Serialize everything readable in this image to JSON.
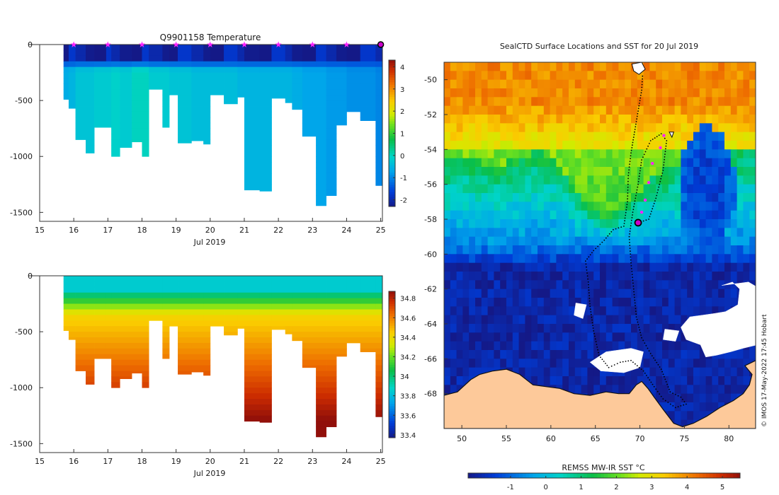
{
  "credit": "© IMOS 17-May-2022 17:45 Hobart",
  "chart_data": [
    {
      "type": "heatmap",
      "name": "temperature-section",
      "title": "Q9901158  Temperature",
      "xlabel": "Jul 2019",
      "ylabel": "",
      "xlim": [
        15,
        25.05
      ],
      "ylim": [
        -1580,
        0
      ],
      "xticks": [
        "15",
        "16",
        "17",
        "18",
        "19",
        "20",
        "21",
        "22",
        "23",
        "24",
        "25"
      ],
      "yticks": [
        "0",
        "-500",
        "-1000",
        "-1500"
      ],
      "colorbar": {
        "min": -2.3,
        "max": 4.3,
        "ticks": [
          "-2",
          "-1",
          "0",
          "1",
          "2",
          "3",
          "4"
        ]
      },
      "profile_markers": [
        16,
        17,
        18,
        19,
        20,
        21,
        22,
        23,
        24
      ],
      "last_position": 25,
      "profiles": [
        {
          "t": 15.7,
          "d": 490,
          "s": 1.7
        },
        {
          "t": 15.85,
          "d": 570,
          "s": 1.8
        },
        {
          "t": 16.05,
          "d": 850,
          "s": 2.0
        },
        {
          "t": 16.35,
          "d": 970,
          "s": 2.0
        },
        {
          "t": 16.6,
          "d": 740,
          "s": 2.1
        },
        {
          "t": 16.95,
          "d": 740,
          "s": 2.1
        },
        {
          "t": 17.1,
          "d": 1000,
          "s": 2.2
        },
        {
          "t": 17.35,
          "d": 920,
          "s": 2.1
        },
        {
          "t": 17.7,
          "d": 870,
          "s": 2.3
        },
        {
          "t": 18.0,
          "d": 1000,
          "s": 2.3
        },
        {
          "t": 18.2,
          "d": 400,
          "s": 2.1
        },
        {
          "t": 18.6,
          "d": 740,
          "s": 2.1
        },
        {
          "t": 18.8,
          "d": 450,
          "s": 2.0
        },
        {
          "t": 19.05,
          "d": 880,
          "s": 2.0
        },
        {
          "t": 19.45,
          "d": 860,
          "s": 1.9
        },
        {
          "t": 19.8,
          "d": 890,
          "s": 1.9
        },
        {
          "t": 20.0,
          "d": 450,
          "s": 1.9
        },
        {
          "t": 20.4,
          "d": 530,
          "s": 1.9
        },
        {
          "t": 20.8,
          "d": 470,
          "s": 1.8
        },
        {
          "t": 21.0,
          "d": 1300,
          "s": 1.8
        },
        {
          "t": 21.45,
          "d": 1310,
          "s": 1.8
        },
        {
          "t": 21.8,
          "d": 480,
          "s": 1.8
        },
        {
          "t": 22.2,
          "d": 520,
          "s": 1.8
        },
        {
          "t": 22.4,
          "d": 580,
          "s": 1.7
        },
        {
          "t": 22.7,
          "d": 820,
          "s": 1.6
        },
        {
          "t": 23.1,
          "d": 1440,
          "s": 1.6
        },
        {
          "t": 23.4,
          "d": 1350,
          "s": 1.5
        },
        {
          "t": 23.7,
          "d": 720,
          "s": 1.5
        },
        {
          "t": 24.0,
          "d": 600,
          "s": 1.4
        },
        {
          "t": 24.4,
          "d": 680,
          "s": 1.4
        },
        {
          "t": 24.85,
          "d": 1260,
          "s": 1.3
        }
      ]
    },
    {
      "type": "heatmap",
      "name": "salinity-section",
      "title": "",
      "xlabel": "Jul 2019",
      "ylabel": "",
      "xlim": [
        15,
        25.05
      ],
      "ylim": [
        -1580,
        0
      ],
      "xticks": [
        "15",
        "16",
        "17",
        "18",
        "19",
        "20",
        "21",
        "22",
        "23",
        "24",
        "25"
      ],
      "yticks": [
        "0",
        "-500",
        "-1000",
        "-1500"
      ],
      "colorbar": {
        "min": 33.37,
        "max": 34.87,
        "ticks": [
          "33.4",
          "33.6",
          "33.8",
          "34",
          "34.2",
          "34.4",
          "34.6",
          "34.8"
        ]
      }
    },
    {
      "type": "heatmap",
      "name": "sst-map",
      "title": "SealCTD Surface Locations and SST for 20 Jul 2019",
      "xlabel": "",
      "ylabel": "",
      "xlim": [
        48,
        83
      ],
      "ylim": [
        -70,
        -49
      ],
      "xticks": [
        "50",
        "55",
        "60",
        "65",
        "70",
        "75",
        "80"
      ],
      "yticks": [
        "-50",
        "-52",
        "-54",
        "-56",
        "-58",
        "-60",
        "-62",
        "-64",
        "-66",
        "-68"
      ],
      "colorbar": {
        "label": "REMSS MW-IR SST °C",
        "min": -2.2,
        "max": 5.5,
        "ticks": [
          "-1",
          "0",
          "1",
          "2",
          "3",
          "4",
          "5"
        ]
      },
      "current_position": {
        "lon": 69.8,
        "lat": -58.2
      },
      "recent_track": [
        {
          "lon": 72.7,
          "lat": -53.2
        },
        {
          "lon": 72.3,
          "lat": -53.9
        },
        {
          "lon": 71.4,
          "lat": -54.8
        },
        {
          "lon": 71.0,
          "lat": -55.9
        },
        {
          "lon": 70.6,
          "lat": -56.9
        },
        {
          "lon": 70.2,
          "lat": -57.6
        },
        {
          "lon": 69.8,
          "lat": -58.2
        }
      ]
    }
  ]
}
